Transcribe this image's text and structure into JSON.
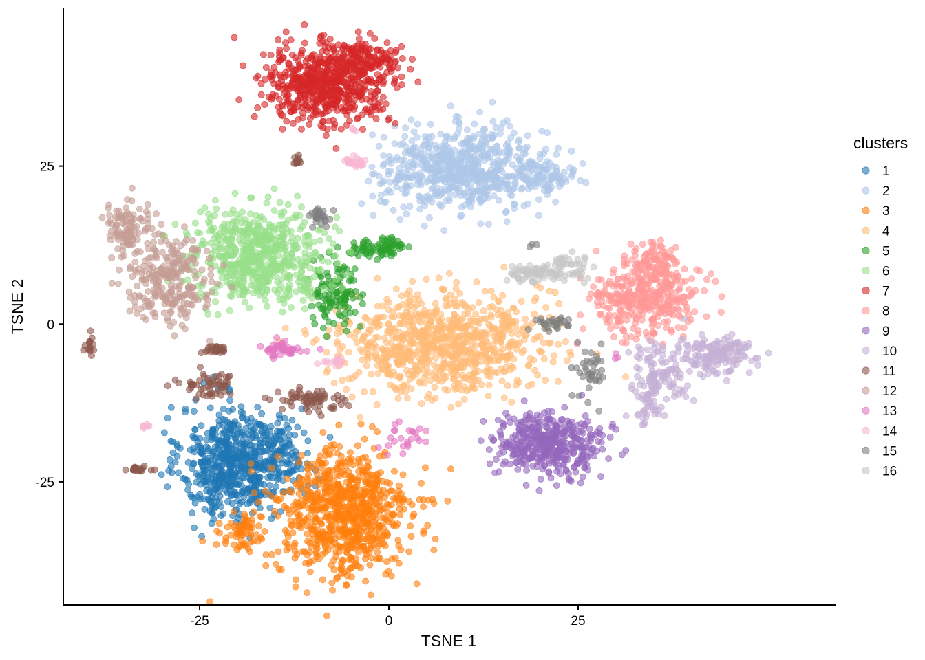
{
  "chart_data": {
    "type": "scatter",
    "title": "",
    "xlabel": "TSNE 1",
    "ylabel": "TSNE 2",
    "xlim": [
      -43,
      59
    ],
    "ylim": [
      -44.5,
      50
    ],
    "x_ticks": [
      -25,
      0,
      25
    ],
    "x_tick_labels": [
      "-25",
      "0",
      "25"
    ],
    "y_ticks": [
      -25,
      0,
      25
    ],
    "y_tick_labels": [
      "-25",
      "0",
      "25"
    ],
    "grid": false,
    "legend": {
      "title": "clusters",
      "position": "right"
    },
    "point_alpha": 0.6,
    "series": [
      {
        "name": "1",
        "color": "#1f77b4",
        "clusters": [
          {
            "cx": -21,
            "cy": -22,
            "sx": 3.2,
            "sy": 4.5,
            "n": 520
          },
          {
            "cx": -15,
            "cy": -21,
            "sx": 2.5,
            "sy": 3,
            "n": 160
          }
        ]
      },
      {
        "name": "2",
        "color": "#aec7e8",
        "clusters": [
          {
            "cx": 10,
            "cy": 24.5,
            "sx": 5.5,
            "sy": 3.2,
            "n": 680
          },
          {
            "cx": 21,
            "cy": 23,
            "sx": 1.8,
            "sy": 1.2,
            "n": 60
          }
        ]
      },
      {
        "name": "3",
        "color": "#ff7f0e",
        "clusters": [
          {
            "cx": -6,
            "cy": -30,
            "sx": 4.5,
            "sy": 5,
            "n": 780
          },
          {
            "cx": -19,
            "cy": -33,
            "sx": 1.5,
            "sy": 1.5,
            "n": 60
          }
        ]
      },
      {
        "name": "4",
        "color": "#ffbb78",
        "clusters": [
          {
            "cx": 7,
            "cy": -3,
            "sx": 6.5,
            "sy": 4,
            "n": 880
          }
        ]
      },
      {
        "name": "5",
        "color": "#2ca02c",
        "clusters": [
          {
            "cx": -7,
            "cy": 5,
            "sx": 1.5,
            "sy": 2.5,
            "n": 110
          },
          {
            "cx": -1.5,
            "cy": 12,
            "sx": 2.2,
            "sy": 0.7,
            "n": 75
          }
        ]
      },
      {
        "name": "6",
        "color": "#98df8a",
        "clusters": [
          {
            "cx": -17,
            "cy": 11,
            "sx": 4.5,
            "sy": 3.5,
            "n": 620
          }
        ]
      },
      {
        "name": "7",
        "color": "#d62728",
        "clusters": [
          {
            "cx": -8.5,
            "cy": 38,
            "sx": 4,
            "sy": 3,
            "n": 580
          },
          {
            "cx": -3,
            "cy": 41.5,
            "sx": 2.5,
            "sy": 1.5,
            "n": 130
          }
        ]
      },
      {
        "name": "8",
        "color": "#ff9896",
        "clusters": [
          {
            "cx": 34,
            "cy": 4,
            "sx": 3.5,
            "sy": 3,
            "n": 360
          },
          {
            "cx": 35,
            "cy": 10,
            "sx": 1.5,
            "sy": 1.5,
            "n": 80
          }
        ]
      },
      {
        "name": "9",
        "color": "#9467bd",
        "clusters": [
          {
            "cx": 21,
            "cy": -19,
            "sx": 3.5,
            "sy": 2.5,
            "n": 420
          }
        ]
      },
      {
        "name": "10",
        "color": "#c5b0d5",
        "clusters": [
          {
            "cx": 43,
            "cy": -5,
            "sx": 2.5,
            "sy": 1.5,
            "n": 150
          },
          {
            "cx": 36,
            "cy": -8,
            "sx": 2,
            "sy": 2.5,
            "n": 110
          },
          {
            "cx": 34,
            "cy": -13,
            "sx": 1,
            "sy": 2,
            "n": 40
          }
        ]
      },
      {
        "name": "11",
        "color": "#8c564b",
        "clusters": [
          {
            "cx": -24,
            "cy": -10,
            "sx": 2,
            "sy": 1,
            "n": 55
          },
          {
            "cx": -10.5,
            "cy": -12,
            "sx": 2,
            "sy": 1,
            "n": 70
          },
          {
            "cx": -23,
            "cy": -4,
            "sx": 0.8,
            "sy": 0.4,
            "n": 25
          },
          {
            "cx": -33,
            "cy": -23,
            "sx": 0.7,
            "sy": 0.3,
            "n": 20
          },
          {
            "cx": -39.5,
            "cy": -3,
            "sx": 0.4,
            "sy": 0.8,
            "n": 15
          },
          {
            "cx": -12,
            "cy": 26,
            "sx": 0.3,
            "sy": 0.5,
            "n": 12
          }
        ]
      },
      {
        "name": "12",
        "color": "#c49c94",
        "clusters": [
          {
            "cx": -29,
            "cy": 7,
            "sx": 3,
            "sy": 3.5,
            "n": 260
          },
          {
            "cx": -35,
            "cy": 15,
            "sx": 1.5,
            "sy": 2,
            "n": 90
          }
        ]
      },
      {
        "name": "13",
        "color": "#e377c2",
        "clusters": [
          {
            "cx": -14.5,
            "cy": -4,
            "sx": 1.5,
            "sy": 0.6,
            "n": 45
          },
          {
            "cx": 2,
            "cy": -18,
            "sx": 1.5,
            "sy": 1,
            "n": 25
          },
          {
            "cx": 30,
            "cy": -5,
            "sx": 0.3,
            "sy": 0.3,
            "n": 3
          }
        ]
      },
      {
        "name": "14",
        "color": "#f7b6d2",
        "clusters": [
          {
            "cx": -4.5,
            "cy": 25.5,
            "sx": 0.7,
            "sy": 0.4,
            "n": 22
          },
          {
            "cx": -7,
            "cy": -6,
            "sx": 1,
            "sy": 0.3,
            "n": 14
          },
          {
            "cx": -32,
            "cy": -16,
            "sx": 0.4,
            "sy": 0.3,
            "n": 6
          },
          {
            "cx": -4.5,
            "cy": 30.5,
            "sx": 0.3,
            "sy": 0.3,
            "n": 3
          }
        ]
      },
      {
        "name": "15",
        "color": "#7f7f7f",
        "clusters": [
          {
            "cx": -9,
            "cy": 17,
            "sx": 0.8,
            "sy": 0.7,
            "n": 28
          },
          {
            "cx": 22,
            "cy": 0,
            "sx": 1.5,
            "sy": 0.5,
            "n": 30
          },
          {
            "cx": 26.5,
            "cy": -8,
            "sx": 1,
            "sy": 2.3,
            "n": 38
          },
          {
            "cx": 19,
            "cy": 12.5,
            "sx": 0.3,
            "sy": 0.3,
            "n": 3
          }
        ]
      },
      {
        "name": "16",
        "color": "#c7c7c7",
        "clusters": [
          {
            "cx": 19,
            "cy": 8,
            "sx": 1.8,
            "sy": 0.7,
            "n": 60
          },
          {
            "cx": 24,
            "cy": 9,
            "sx": 1.5,
            "sy": 1,
            "n": 45
          }
        ]
      }
    ]
  }
}
